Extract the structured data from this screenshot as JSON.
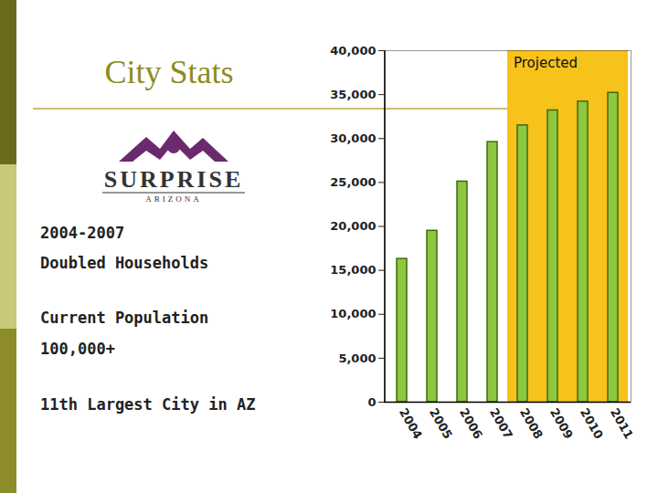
{
  "slide": {
    "title": "City Stats",
    "logo": {
      "name": "SURPRISE",
      "state": "ARIZONA"
    },
    "bullets": [
      [
        "2004-2007",
        "Doubled Households"
      ],
      [
        "Current Population",
        "100,000+"
      ],
      [
        "11th Largest City in AZ"
      ]
    ]
  },
  "chart_data": {
    "type": "bar",
    "categories": [
      "2004",
      "2005",
      "2006",
      "2007",
      "2008",
      "2009",
      "2010",
      "2011"
    ],
    "values": [
      16300,
      19500,
      25100,
      29600,
      31500,
      33200,
      34200,
      35200
    ],
    "color": "#8dc63f",
    "ylim": [
      0,
      40000
    ],
    "yticks": [
      0,
      {
        "value": 5000,
        "label": "5,000"
      },
      {
        "value": 10000,
        "label": "10,000"
      },
      {
        "value": 15000,
        "label": "15,000"
      },
      {
        "value": 20000,
        "label": "20,000"
      },
      {
        "value": 25000,
        "label": "25,000"
      },
      {
        "value": 30000,
        "label": "30,000"
      },
      {
        "value": 35000,
        "label": "35,000"
      },
      {
        "value": 40000,
        "label": "40,000"
      }
    ],
    "grid": false,
    "annotations": [
      {
        "text": "Projected",
        "x_start": "2008",
        "x_end": "2011"
      }
    ]
  }
}
